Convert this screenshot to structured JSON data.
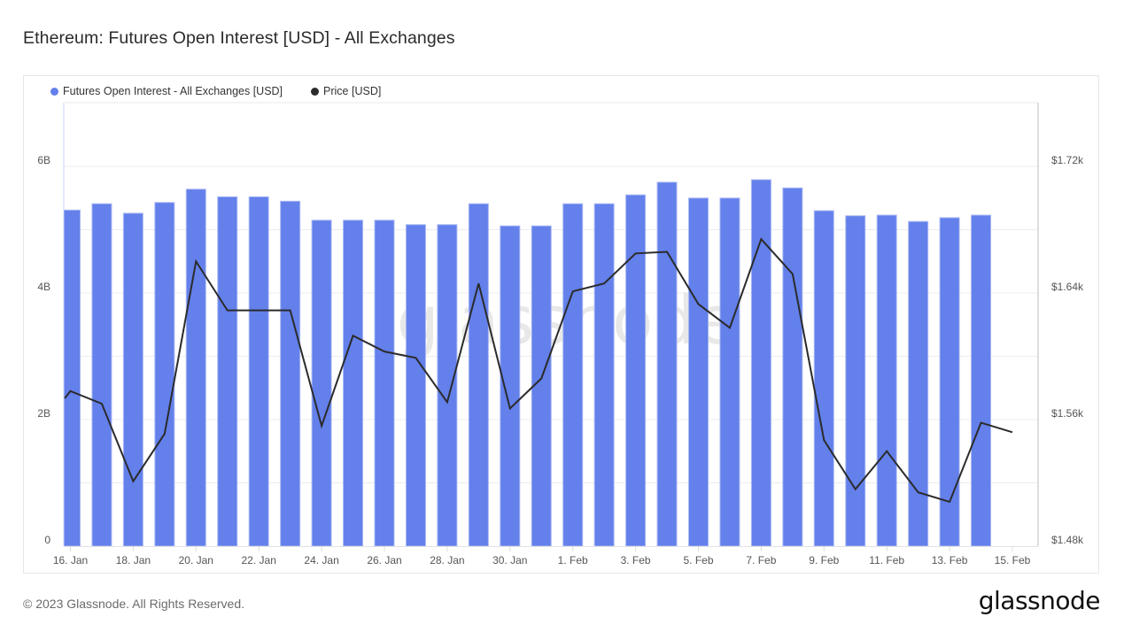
{
  "page": {
    "title": "Ethereum: Futures Open Interest [USD] - All Exchanges",
    "copyright": "© 2023 Glassnode. All Rights Reserved.",
    "logo": "glassnode",
    "watermark": "glassnode"
  },
  "legend": [
    {
      "label": "Futures Open Interest - All Exchanges [USD]",
      "color": "#6380eb"
    },
    {
      "label": "Price [USD]",
      "color": "#2b2b2b"
    }
  ],
  "colors": {
    "bar": "#6380eb",
    "bar_edge": "#a9b8f3",
    "line": "#2b2b2b",
    "grid": "#ececec",
    "left_axis": "#c8d2f7",
    "right_axis": "#bdbdbd"
  },
  "chart_data": {
    "type": "bar",
    "title": "Ethereum: Futures Open Interest [USD] - All Exchanges",
    "xlabel": "",
    "ylabel": "",
    "legend_position": "top-left",
    "grid": true,
    "x": [
      "16 Jan",
      "17 Jan",
      "18 Jan",
      "19 Jan",
      "20 Jan",
      "21 Jan",
      "22 Jan",
      "23 Jan",
      "24 Jan",
      "25 Jan",
      "26 Jan",
      "27 Jan",
      "28 Jan",
      "29 Jan",
      "30 Jan",
      "31 Jan",
      "1 Feb",
      "2 Feb",
      "3 Feb",
      "4 Feb",
      "5 Feb",
      "6 Feb",
      "7 Feb",
      "8 Feb",
      "9 Feb",
      "10 Feb",
      "11 Feb",
      "12 Feb",
      "13 Feb",
      "14 Feb",
      "15 Feb"
    ],
    "x_tick_labels": [
      "16. Jan",
      "18. Jan",
      "20. Jan",
      "22. Jan",
      "24. Jan",
      "26. Jan",
      "28. Jan",
      "30. Jan",
      "1. Feb",
      "3. Feb",
      "5. Feb",
      "7. Feb",
      "9. Feb",
      "11. Feb",
      "13. Feb",
      "15. Feb"
    ],
    "series": [
      {
        "name": "Futures Open Interest - All Exchanges [USD]",
        "type": "bar",
        "axis": "left",
        "unit": "B USD",
        "values": [
          5.31,
          5.41,
          5.26,
          5.43,
          5.64,
          5.52,
          5.52,
          5.45,
          5.15,
          5.15,
          5.15,
          5.08,
          5.08,
          5.41,
          5.06,
          5.06,
          5.41,
          5.41,
          5.55,
          5.75,
          5.5,
          5.5,
          5.79,
          5.66,
          5.3,
          5.22,
          5.23,
          5.13,
          5.19,
          5.23,
          null
        ]
      },
      {
        "name": "Price [USD]",
        "type": "line",
        "axis": "right",
        "unit": "USD",
        "values": [
          1578,
          1570,
          1521,
          1551,
          1660,
          1629,
          1629,
          1629,
          1556,
          1613,
          1603,
          1599,
          1571,
          1646,
          1567,
          1586,
          1641,
          1646,
          1665,
          1666,
          1633,
          1618,
          1674,
          1652,
          1547,
          1516,
          1540,
          1514,
          1508,
          1558,
          1552
        ]
      }
    ],
    "y_left": {
      "ticks": [
        0,
        2,
        4,
        6
      ],
      "tick_labels": [
        "0",
        "2B",
        "4B",
        "6B"
      ],
      "range": [
        0,
        7.0
      ]
    },
    "y_right": {
      "ticks": [
        1480,
        1560,
        1640,
        1720
      ],
      "tick_labels": [
        "$1.48k",
        "$1.56k",
        "$1.64k",
        "$1.72k"
      ],
      "range": [
        1480,
        1760
      ]
    }
  }
}
